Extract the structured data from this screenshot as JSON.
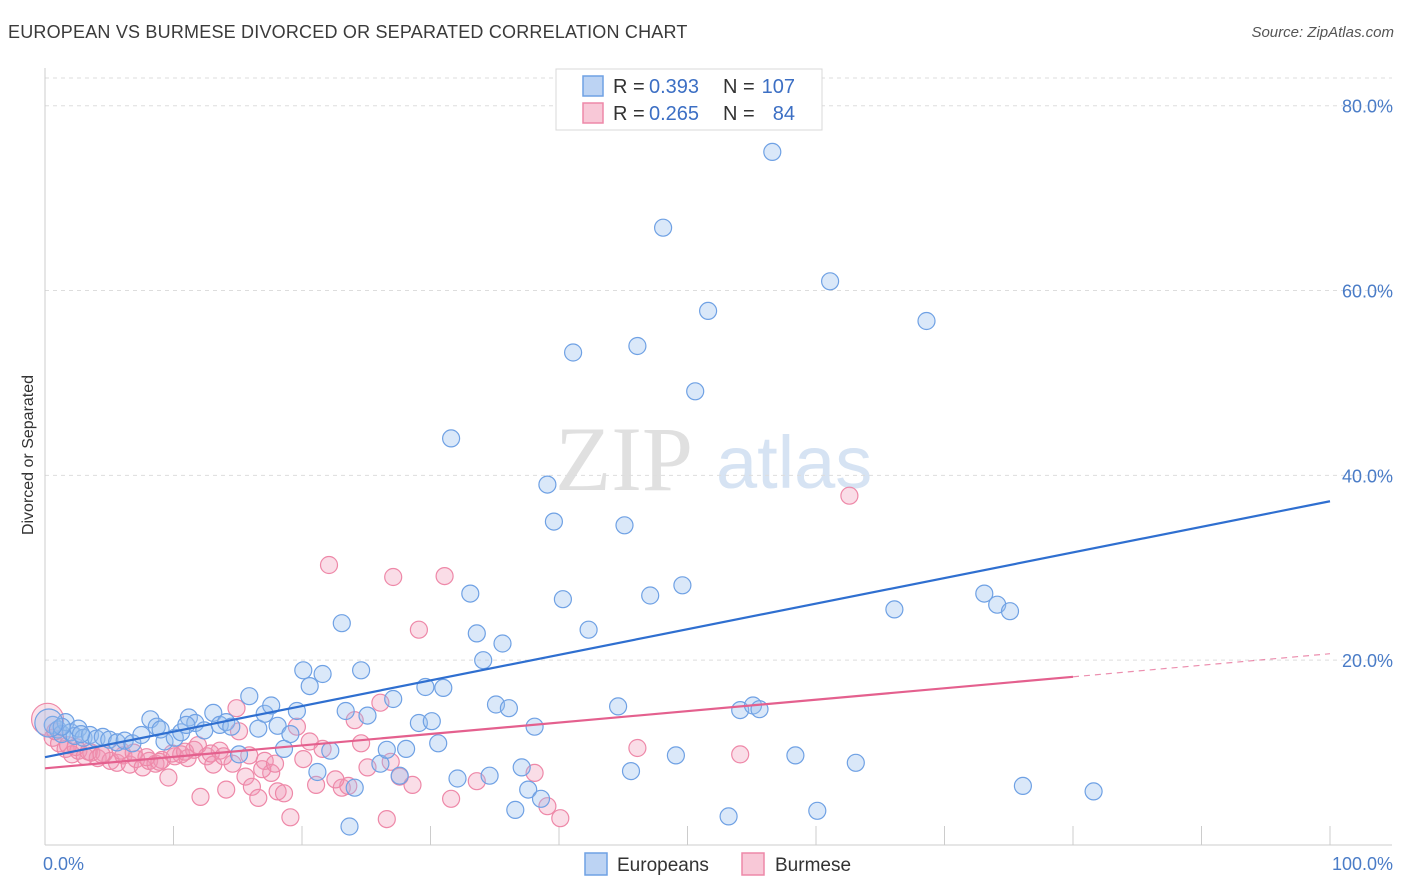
{
  "header": {
    "title": "EUROPEAN VS BURMESE DIVORCED OR SEPARATED CORRELATION CHART",
    "source": "Source: ZipAtlas.com"
  },
  "watermark": {
    "part1": "ZIP",
    "part2": "atlas"
  },
  "legend_top": {
    "rows": [
      {
        "r_label": "R =",
        "r_value": "0.393",
        "n_label": "N =",
        "n_value": "107",
        "color": "#6fa1e4"
      },
      {
        "r_label": "R =",
        "r_value": "0.265",
        "n_label": "N =",
        "n_value": "84",
        "color": "#ee88a8"
      }
    ]
  },
  "legend_bottom": {
    "items": [
      {
        "label": "Europeans"
      },
      {
        "label": "Burmese"
      }
    ]
  },
  "chart_data": {
    "type": "scatter",
    "title": "EUROPEAN VS BURMESE DIVORCED OR SEPARATED CORRELATION CHART",
    "ylabel": "Divorced or Separated",
    "xlabel": "",
    "xlim": [
      0,
      100
    ],
    "ylim": [
      0,
      83
    ],
    "x_tick_labels": [
      "0.0%",
      "100.0%"
    ],
    "y_tick_labels": [
      "20.0%",
      "40.0%",
      "60.0%",
      "80.0%"
    ],
    "y_ticks": [
      20,
      40,
      60,
      80
    ],
    "grid": "horizontal dashed",
    "legend_placement": "top-center",
    "series": [
      {
        "name": "Europeans",
        "color": "#6fa1e4",
        "line_color": "#2f6fd0",
        "r": 0.393,
        "n": 107,
        "trend": {
          "x": [
            0,
            100
          ],
          "y": [
            9.5,
            37.2
          ]
        },
        "points": [
          [
            0.6,
            13.0
          ],
          [
            1.0,
            12.5
          ],
          [
            1.3,
            12.0
          ],
          [
            1.6,
            13.3
          ],
          [
            2.0,
            12.2
          ],
          [
            2.3,
            11.8
          ],
          [
            2.6,
            12.6
          ],
          [
            3.0,
            11.6
          ],
          [
            3.5,
            11.9
          ],
          [
            4.0,
            11.5
          ],
          [
            4.5,
            11.7
          ],
          [
            5.0,
            11.4
          ],
          [
            5.6,
            11.1
          ],
          [
            6.2,
            11.3
          ],
          [
            6.8,
            11.0
          ],
          [
            7.5,
            11.9
          ],
          [
            8.2,
            13.6
          ],
          [
            8.7,
            12.8
          ],
          [
            9.3,
            11.2
          ],
          [
            10.1,
            11.6
          ],
          [
            10.6,
            12.2
          ],
          [
            11.2,
            13.8
          ],
          [
            11.7,
            13.2
          ],
          [
            12.4,
            12.4
          ],
          [
            13.1,
            14.3
          ],
          [
            13.6,
            13.0
          ],
          [
            14.1,
            13.3
          ],
          [
            15.1,
            9.8
          ],
          [
            15.9,
            16.1
          ],
          [
            16.6,
            12.6
          ],
          [
            17.1,
            14.2
          ],
          [
            17.6,
            15.1
          ],
          [
            18.1,
            12.9
          ],
          [
            18.6,
            10.4
          ],
          [
            19.6,
            14.5
          ],
          [
            20.1,
            18.9
          ],
          [
            20.6,
            17.2
          ],
          [
            21.2,
            7.9
          ],
          [
            21.6,
            18.5
          ],
          [
            22.2,
            10.2
          ],
          [
            23.1,
            24.0
          ],
          [
            23.4,
            14.5
          ],
          [
            23.7,
            2.0
          ],
          [
            24.1,
            6.2
          ],
          [
            24.6,
            18.9
          ],
          [
            25.1,
            14.0
          ],
          [
            26.1,
            8.8
          ],
          [
            26.6,
            10.3
          ],
          [
            27.1,
            15.8
          ],
          [
            27.6,
            7.5
          ],
          [
            28.1,
            10.4
          ],
          [
            29.1,
            13.2
          ],
          [
            29.6,
            17.1
          ],
          [
            30.1,
            13.4
          ],
          [
            30.6,
            11.0
          ],
          [
            31.0,
            17.0
          ],
          [
            31.6,
            44.0
          ],
          [
            32.1,
            7.2
          ],
          [
            33.1,
            27.2
          ],
          [
            33.6,
            22.9
          ],
          [
            34.1,
            20.0
          ],
          [
            34.6,
            7.5
          ],
          [
            35.1,
            15.2
          ],
          [
            35.6,
            21.8
          ],
          [
            36.6,
            3.8
          ],
          [
            37.1,
            8.4
          ],
          [
            37.6,
            6.0
          ],
          [
            38.1,
            12.8
          ],
          [
            38.6,
            5.0
          ],
          [
            39.1,
            39.0
          ],
          [
            39.6,
            35.0
          ],
          [
            40.3,
            26.6
          ],
          [
            41.1,
            53.3
          ],
          [
            42.3,
            23.3
          ],
          [
            44.6,
            15.0
          ],
          [
            45.1,
            34.6
          ],
          [
            45.6,
            8.0
          ],
          [
            46.1,
            54.0
          ],
          [
            47.1,
            27.0
          ],
          [
            48.1,
            66.8
          ],
          [
            49.1,
            9.7
          ],
          [
            49.6,
            28.1
          ],
          [
            50.6,
            49.1
          ],
          [
            51.6,
            57.8
          ],
          [
            53.2,
            3.1
          ],
          [
            54.1,
            14.6
          ],
          [
            55.1,
            15.1
          ],
          [
            55.6,
            14.7
          ],
          [
            56.6,
            75.0
          ],
          [
            58.4,
            9.7
          ],
          [
            60.1,
            3.7
          ],
          [
            61.1,
            61.0
          ],
          [
            63.1,
            8.9
          ],
          [
            66.1,
            25.5
          ],
          [
            68.6,
            56.7
          ],
          [
            73.1,
            27.2
          ],
          [
            74.1,
            26.0
          ],
          [
            75.1,
            25.3
          ],
          [
            76.1,
            6.4
          ],
          [
            81.6,
            5.8
          ],
          [
            1.3,
            12.8
          ],
          [
            2.8,
            12.0
          ],
          [
            9.0,
            12.5
          ],
          [
            11.0,
            13.0
          ],
          [
            14.5,
            12.8
          ],
          [
            19.1,
            12.0
          ],
          [
            36.1,
            14.8
          ]
        ]
      },
      {
        "name": "Burmese",
        "color": "#ee88a8",
        "line_color": "#e4608e",
        "r": 0.265,
        "n": 84,
        "trend": {
          "x": [
            0,
            80
          ],
          "y": [
            8.3,
            18.2
          ]
        },
        "trend_dashed": {
          "x": [
            80,
            100
          ],
          "y": [
            18.2,
            20.7
          ]
        },
        "points": [
          [
            0.6,
            11.6
          ],
          [
            1.1,
            11.0
          ],
          [
            1.6,
            10.4
          ],
          [
            2.1,
            9.8
          ],
          [
            2.6,
            10.2
          ],
          [
            3.1,
            9.6
          ],
          [
            3.6,
            10.0
          ],
          [
            4.1,
            9.4
          ],
          [
            4.6,
            9.9
          ],
          [
            5.1,
            9.1
          ],
          [
            5.6,
            8.9
          ],
          [
            6.1,
            9.7
          ],
          [
            6.6,
            8.7
          ],
          [
            7.1,
            9.3
          ],
          [
            7.6,
            8.4
          ],
          [
            8.1,
            9.1
          ],
          [
            8.6,
            8.8
          ],
          [
            9.1,
            9.2
          ],
          [
            9.6,
            7.3
          ],
          [
            10.1,
            9.6
          ],
          [
            10.6,
            9.8
          ],
          [
            11.1,
            9.4
          ],
          [
            11.6,
            10.3
          ],
          [
            12.1,
            5.2
          ],
          [
            12.6,
            9.6
          ],
          [
            13.1,
            8.7
          ],
          [
            13.6,
            10.2
          ],
          [
            14.1,
            6.0
          ],
          [
            14.6,
            8.8
          ],
          [
            15.1,
            12.3
          ],
          [
            15.6,
            7.4
          ],
          [
            16.1,
            6.3
          ],
          [
            16.6,
            5.1
          ],
          [
            17.1,
            9.1
          ],
          [
            17.6,
            7.8
          ],
          [
            18.1,
            5.8
          ],
          [
            19.1,
            3.0
          ],
          [
            19.6,
            12.8
          ],
          [
            20.1,
            9.3
          ],
          [
            21.1,
            6.5
          ],
          [
            21.6,
            10.4
          ],
          [
            22.1,
            30.3
          ],
          [
            23.1,
            6.2
          ],
          [
            23.6,
            6.4
          ],
          [
            24.1,
            13.5
          ],
          [
            25.1,
            8.4
          ],
          [
            26.1,
            15.4
          ],
          [
            26.6,
            2.8
          ],
          [
            27.1,
            29.0
          ],
          [
            27.6,
            7.4
          ],
          [
            29.1,
            23.3
          ],
          [
            31.1,
            29.1
          ],
          [
            31.6,
            5.0
          ],
          [
            38.1,
            7.8
          ],
          [
            39.1,
            4.2
          ],
          [
            40.1,
            2.9
          ],
          [
            46.1,
            10.5
          ],
          [
            54.1,
            9.8
          ],
          [
            62.6,
            37.8
          ],
          [
            0.8,
            12.3
          ],
          [
            1.8,
            10.8
          ],
          [
            2.4,
            10.6
          ],
          [
            3.4,
            10.1
          ],
          [
            4.4,
            9.8
          ],
          [
            5.9,
            10.2
          ],
          [
            6.9,
            10.0
          ],
          [
            7.9,
            9.5
          ],
          [
            8.9,
            9.0
          ],
          [
            9.9,
            9.9
          ],
          [
            10.9,
            10.1
          ],
          [
            11.9,
            10.8
          ],
          [
            12.9,
            9.9
          ],
          [
            13.9,
            9.6
          ],
          [
            14.9,
            14.8
          ],
          [
            15.9,
            9.7
          ],
          [
            16.9,
            8.2
          ],
          [
            17.9,
            8.8
          ],
          [
            18.6,
            5.6
          ],
          [
            20.6,
            11.2
          ],
          [
            22.6,
            7.1
          ],
          [
            24.6,
            11.0
          ],
          [
            26.9,
            9.0
          ],
          [
            28.6,
            6.5
          ],
          [
            33.6,
            6.9
          ]
        ]
      }
    ]
  }
}
